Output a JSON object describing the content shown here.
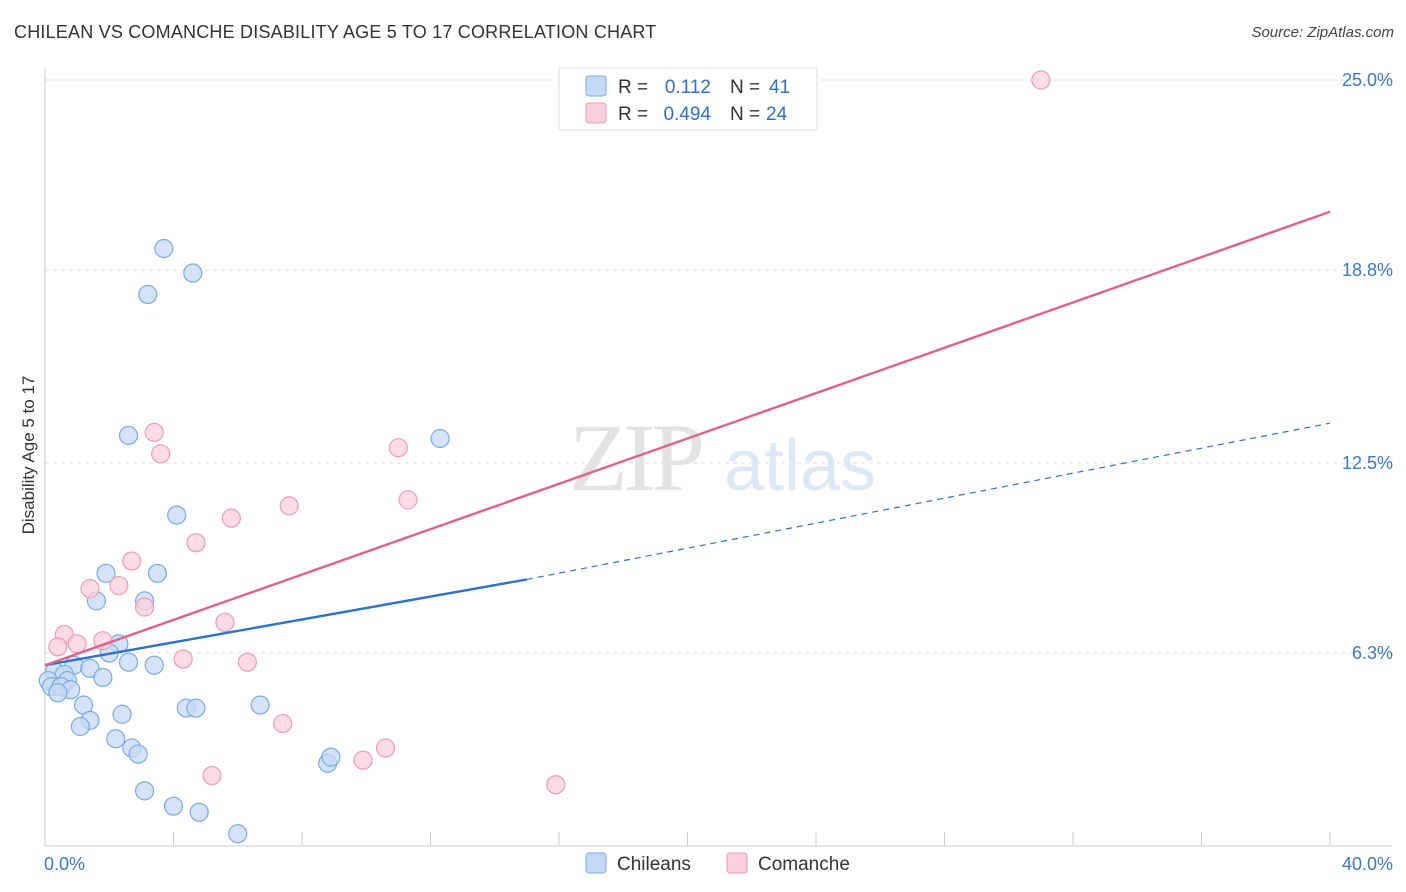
{
  "chart_data": {
    "type": "scatter",
    "title": "CHILEAN VS COMANCHE DISABILITY AGE 5 TO 17 CORRELATION CHART",
    "source": "Source: ZipAtlas.com",
    "xlabel": "",
    "ylabel": "Disability Age 5 to 17",
    "xlim": [
      0,
      40
    ],
    "ylim": [
      0,
      25.6
    ],
    "x_tick_labels": [
      "0.0%",
      "40.0%"
    ],
    "y_ticks": [
      {
        "value": 6.3,
        "label": "6.3%"
      },
      {
        "value": 12.5,
        "label": "12.5%"
      },
      {
        "value": 18.8,
        "label": "18.8%"
      },
      {
        "value": 25.0,
        "label": "25.0%"
      }
    ],
    "watermark": {
      "zip": "ZIP",
      "atlas": "atlas"
    },
    "legend": [
      {
        "r_label": "R =",
        "r_value": "0.112",
        "n_label": "N =",
        "n_value": "41"
      },
      {
        "r_label": "R =",
        "r_value": "0.494",
        "n_label": "N =",
        "n_value": "24"
      }
    ],
    "series": [
      {
        "name": "Chileans",
        "color": "#7aaae8",
        "fill": "#c5daf5",
        "line_color": "#2f72cc",
        "trend": {
          "x0": 0,
          "y0": 5.9,
          "x1": 15,
          "y1": 8.7,
          "dash_x1": 40,
          "dash_y1": 13.8
        },
        "points": [
          [
            3.7,
            19.5
          ],
          [
            4.6,
            18.7
          ],
          [
            3.2,
            18.0
          ],
          [
            2.6,
            13.4
          ],
          [
            12.3,
            13.3
          ],
          [
            4.1,
            10.8
          ],
          [
            1.9,
            8.9
          ],
          [
            3.5,
            8.9
          ],
          [
            1.6,
            8.0
          ],
          [
            3.1,
            8.0
          ],
          [
            2.3,
            6.6
          ],
          [
            2.0,
            6.3
          ],
          [
            2.6,
            6.0
          ],
          [
            3.4,
            5.9
          ],
          [
            0.9,
            5.9
          ],
          [
            1.4,
            5.8
          ],
          [
            0.3,
            5.7
          ],
          [
            0.6,
            5.6
          ],
          [
            1.8,
            5.5
          ],
          [
            0.7,
            5.4
          ],
          [
            0.1,
            5.4
          ],
          [
            0.2,
            5.2
          ],
          [
            0.5,
            5.2
          ],
          [
            0.8,
            5.1
          ],
          [
            0.4,
            5.0
          ],
          [
            1.2,
            4.6
          ],
          [
            4.4,
            4.5
          ],
          [
            4.7,
            4.5
          ],
          [
            6.7,
            4.6
          ],
          [
            2.4,
            4.3
          ],
          [
            1.4,
            4.1
          ],
          [
            1.1,
            3.9
          ],
          [
            2.2,
            3.5
          ],
          [
            2.7,
            3.2
          ],
          [
            2.9,
            3.0
          ],
          [
            8.8,
            2.7
          ],
          [
            8.9,
            2.9
          ],
          [
            3.1,
            1.8
          ],
          [
            4.0,
            1.3
          ],
          [
            4.8,
            1.1
          ],
          [
            6.0,
            0.4
          ]
        ]
      },
      {
        "name": "Comanche",
        "color": "#f09ab4",
        "fill": "#fad0dc",
        "line_color": "#e0628a",
        "trend": {
          "x0": 0,
          "y0": 5.9,
          "x1": 40,
          "y1": 20.7
        },
        "points": [
          [
            31.0,
            25.0
          ],
          [
            3.4,
            13.5
          ],
          [
            3.6,
            12.8
          ],
          [
            11.0,
            13.0
          ],
          [
            11.3,
            11.3
          ],
          [
            7.6,
            11.1
          ],
          [
            5.8,
            10.7
          ],
          [
            4.7,
            9.9
          ],
          [
            2.7,
            9.3
          ],
          [
            2.3,
            8.5
          ],
          [
            1.4,
            8.4
          ],
          [
            3.1,
            7.8
          ],
          [
            5.6,
            7.3
          ],
          [
            0.6,
            6.9
          ],
          [
            1.8,
            6.7
          ],
          [
            1.0,
            6.6
          ],
          [
            0.4,
            6.5
          ],
          [
            4.3,
            6.1
          ],
          [
            6.3,
            6.0
          ],
          [
            7.4,
            4.0
          ],
          [
            10.6,
            3.2
          ],
          [
            9.9,
            2.8
          ],
          [
            5.2,
            2.3
          ],
          [
            15.9,
            2.0
          ]
        ]
      }
    ]
  }
}
